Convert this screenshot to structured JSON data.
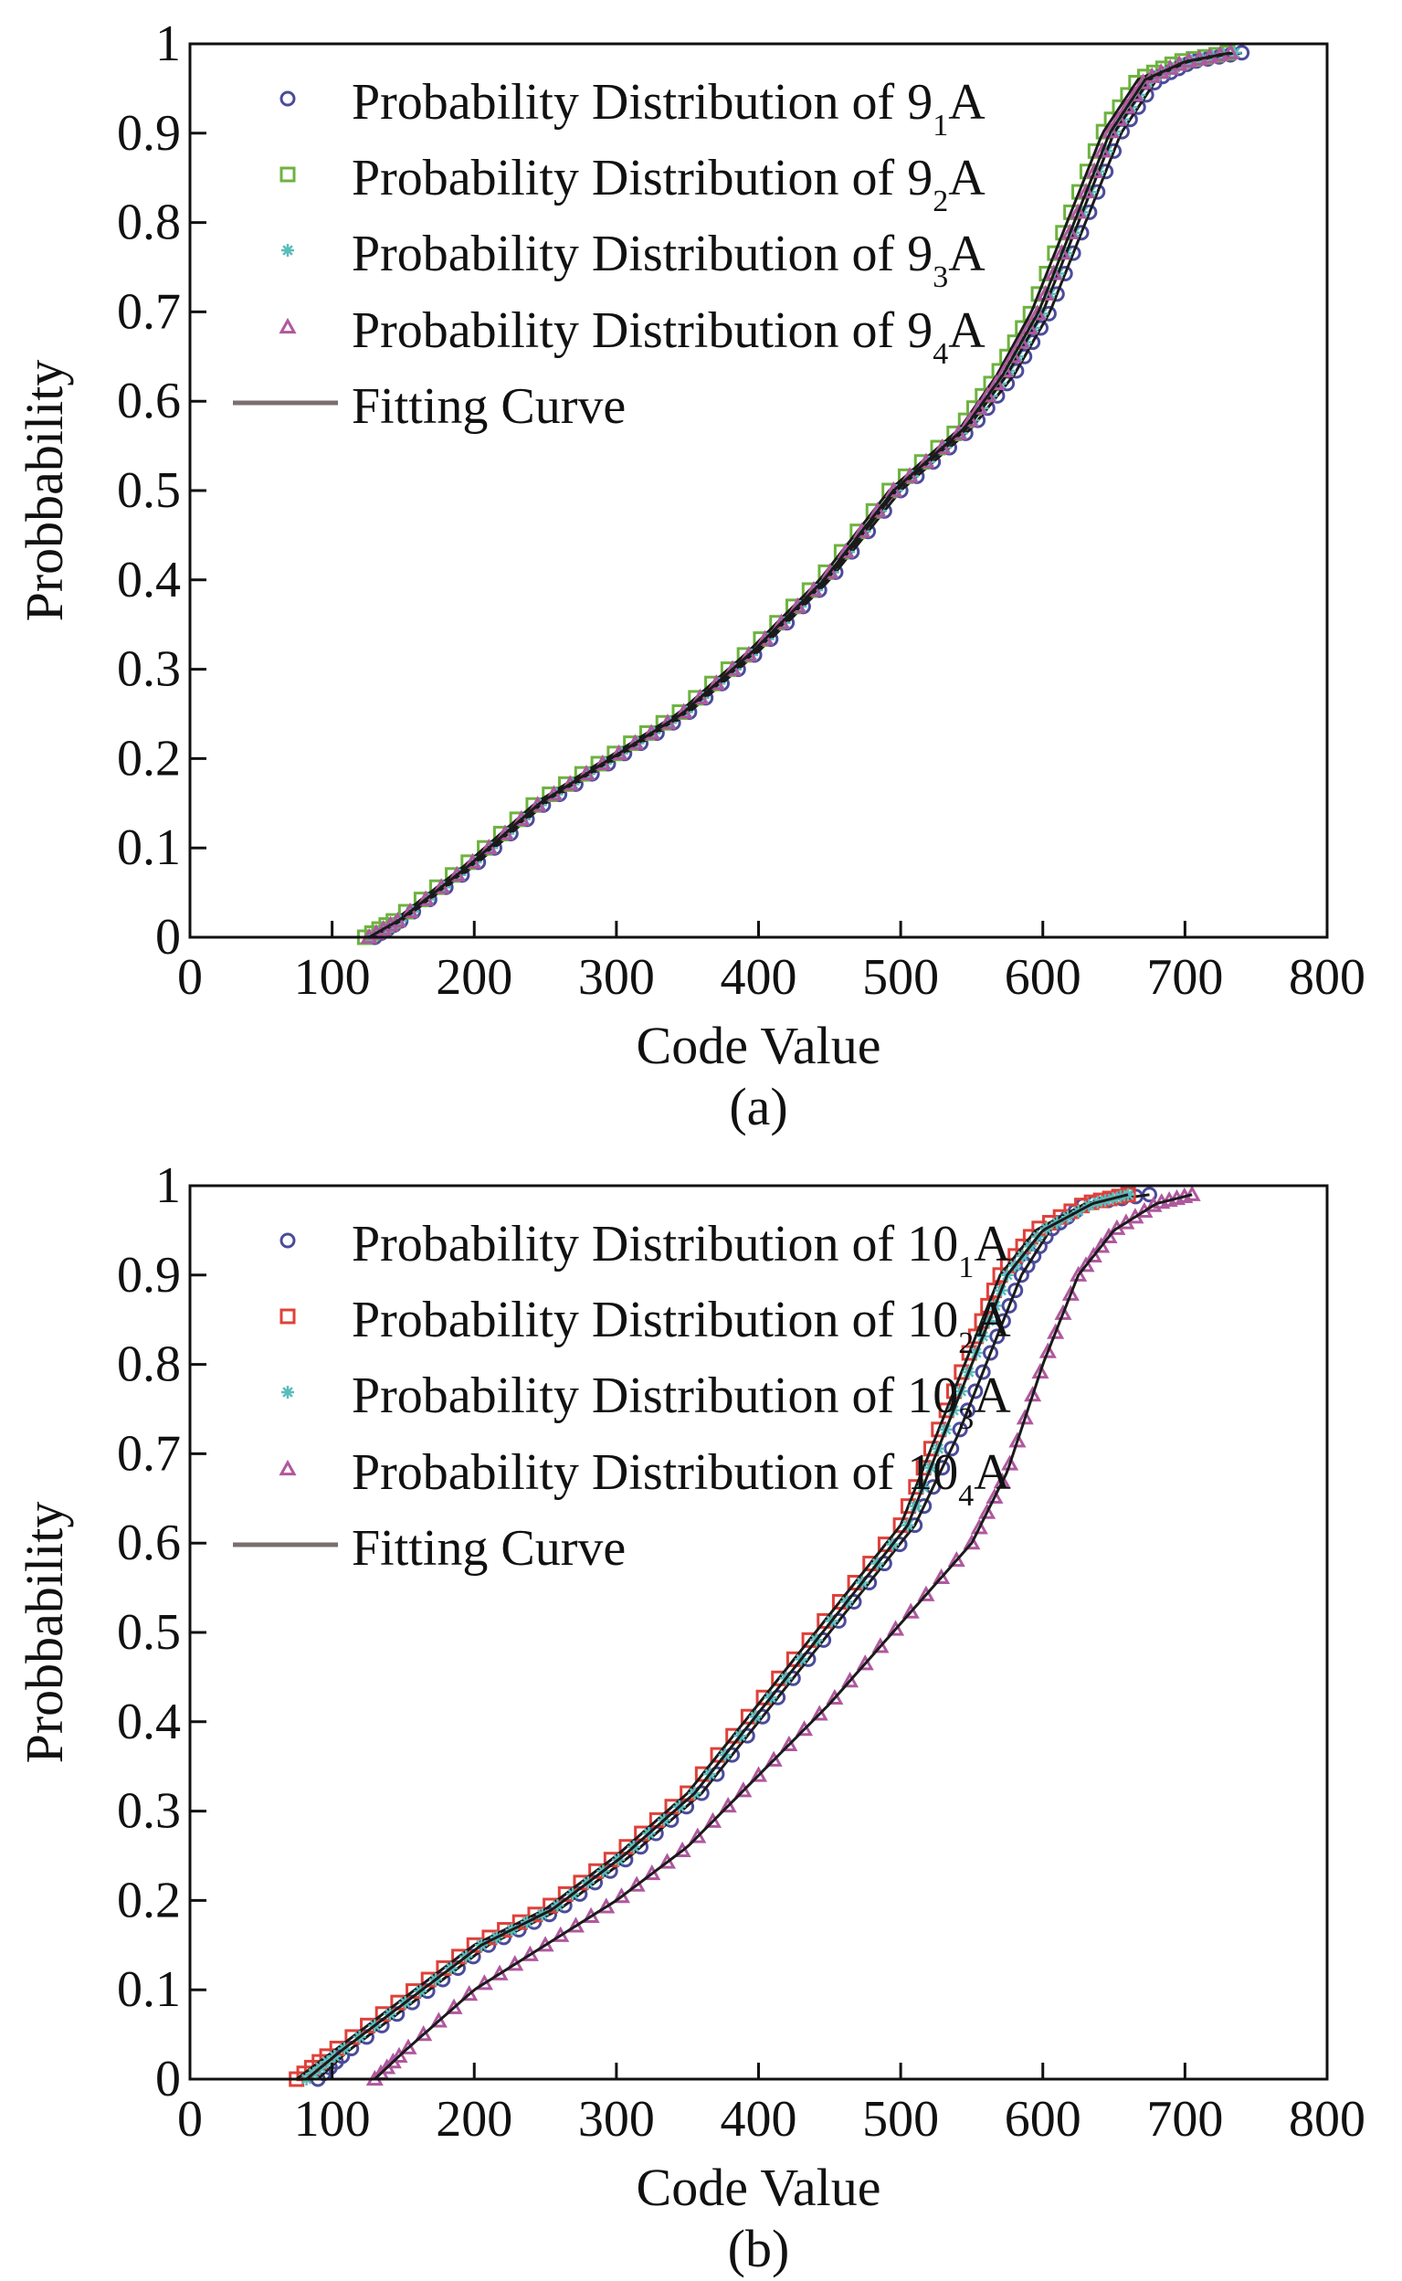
{
  "chart_data": [
    {
      "type": "scatter",
      "panel_label": "(a)",
      "xlabel": "Code Value",
      "ylabel": "Probbability",
      "xlim": [
        0,
        800
      ],
      "ylim": [
        0,
        1
      ],
      "xticks": [
        "0",
        "100",
        "200",
        "300",
        "400",
        "500",
        "600",
        "700",
        "800"
      ],
      "yticks": [
        "0",
        "0.1",
        "0.2",
        "0.3",
        "0.4",
        "0.5",
        "0.6",
        "0.7",
        "0.8",
        "0.9",
        "1"
      ],
      "grid": false,
      "legend_position": "top-left",
      "fit_label": "Fitting Curve",
      "series": [
        {
          "name_prefix": "Probability Distribution of 9",
          "name_sub": "1",
          "name_suffix": "A",
          "marker": "circle",
          "color": "#4b4b9c",
          "x": [
            130,
            150,
            200,
            250,
            300,
            350,
            400,
            450,
            500,
            550,
            580,
            605,
            630,
            655,
            680,
            705,
            740
          ],
          "y": [
            0,
            0.02,
            0.08,
            0.15,
            0.2,
            0.25,
            0.32,
            0.4,
            0.5,
            0.57,
            0.63,
            0.7,
            0.8,
            0.9,
            0.96,
            0.98,
            0.99
          ]
        },
        {
          "name_prefix": "Probability Distribution of 9",
          "name_sub": "2",
          "name_suffix": "A",
          "marker": "square",
          "color": "#6cb33f",
          "x": [
            123,
            145,
            193,
            243,
            293,
            343,
            393,
            443,
            492,
            542,
            568,
            592,
            617,
            642,
            667,
            695,
            730
          ],
          "y": [
            0,
            0.02,
            0.08,
            0.15,
            0.2,
            0.25,
            0.32,
            0.4,
            0.5,
            0.57,
            0.63,
            0.7,
            0.8,
            0.9,
            0.96,
            0.98,
            0.99
          ]
        },
        {
          "name_prefix": "Probability Distribution of 9",
          "name_sub": "3",
          "name_suffix": "A",
          "marker": "asterisk",
          "color": "#5bbcbc",
          "x": [
            128,
            150,
            198,
            248,
            298,
            348,
            398,
            448,
            497,
            547,
            575,
            600,
            625,
            650,
            675,
            702,
            735
          ],
          "y": [
            0,
            0.02,
            0.08,
            0.15,
            0.2,
            0.25,
            0.32,
            0.4,
            0.5,
            0.57,
            0.63,
            0.7,
            0.8,
            0.9,
            0.96,
            0.98,
            0.99
          ]
        },
        {
          "name_prefix": "Probability Distribution of 9",
          "name_sub": "4",
          "name_suffix": "A",
          "marker": "triangle",
          "color": "#b0589e",
          "x": [
            126,
            148,
            196,
            246,
            296,
            346,
            396,
            446,
            495,
            545,
            572,
            597,
            622,
            647,
            672,
            700,
            732
          ],
          "y": [
            0,
            0.02,
            0.08,
            0.15,
            0.2,
            0.25,
            0.32,
            0.4,
            0.5,
            0.57,
            0.63,
            0.7,
            0.8,
            0.9,
            0.96,
            0.98,
            0.99
          ]
        }
      ]
    },
    {
      "type": "scatter",
      "panel_label": "(b)",
      "xlabel": "Code Value",
      "ylabel": "Probbability",
      "xlim": [
        0,
        800
      ],
      "ylim": [
        0,
        1
      ],
      "xticks": [
        "0",
        "100",
        "200",
        "300",
        "400",
        "500",
        "600",
        "700",
        "800"
      ],
      "yticks": [
        "0",
        "0.1",
        "0.2",
        "0.3",
        "0.4",
        "0.5",
        "0.6",
        "0.7",
        "0.8",
        "0.9",
        "1"
      ],
      "grid": false,
      "legend_position": "top-left",
      "fit_label": "Fitting Curve",
      "series": [
        {
          "name_prefix": "Probability Distribution of 10",
          "name_sub": "1",
          "name_suffix": "A",
          "marker": "circle",
          "color": "#4b4b9c",
          "x": [
            90,
            110,
            160,
            210,
            260,
            310,
            360,
            410,
            460,
            510,
            540,
            565,
            585,
            605,
            630,
            675
          ],
          "y": [
            0,
            0.03,
            0.09,
            0.15,
            0.19,
            0.25,
            0.32,
            0.42,
            0.52,
            0.62,
            0.72,
            0.82,
            0.9,
            0.95,
            0.98,
            0.99
          ]
        },
        {
          "name_prefix": "Probability Distribution of 10",
          "name_sub": "2",
          "name_suffix": "A",
          "marker": "square",
          "color": "#e0403a",
          "x": [
            75,
            100,
            150,
            200,
            250,
            300,
            350,
            400,
            450,
            500,
            525,
            550,
            570,
            595,
            630,
            660
          ],
          "y": [
            0,
            0.03,
            0.09,
            0.15,
            0.19,
            0.25,
            0.32,
            0.42,
            0.52,
            0.62,
            0.72,
            0.82,
            0.9,
            0.95,
            0.98,
            0.99
          ]
        },
        {
          "name_prefix": "Probability Distribution of 10",
          "name_sub": "3",
          "name_suffix": "A",
          "marker": "asterisk",
          "color": "#5bbcbc",
          "x": [
            82,
            105,
            155,
            205,
            255,
            305,
            355,
            405,
            455,
            505,
            530,
            555,
            575,
            600,
            635,
            660
          ],
          "y": [
            0,
            0.03,
            0.09,
            0.15,
            0.19,
            0.25,
            0.32,
            0.42,
            0.52,
            0.62,
            0.72,
            0.82,
            0.9,
            0.95,
            0.98,
            0.99
          ]
        },
        {
          "name_prefix": "Probability Distribution of 10",
          "name_sub": "4",
          "name_suffix": "A",
          "marker": "triangle",
          "color": "#b0589e",
          "x": [
            130,
            150,
            200,
            250,
            300,
            350,
            400,
            450,
            500,
            550,
            575,
            600,
            625,
            650,
            680,
            705
          ],
          "y": [
            0,
            0.03,
            0.1,
            0.15,
            0.2,
            0.26,
            0.34,
            0.42,
            0.51,
            0.6,
            0.68,
            0.8,
            0.9,
            0.95,
            0.98,
            0.99
          ]
        }
      ]
    }
  ]
}
